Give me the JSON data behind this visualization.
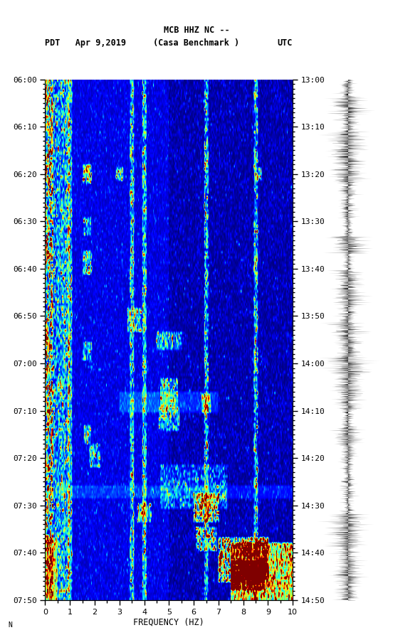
{
  "title_line1": "MCB HHZ NC --",
  "title_line2": "(Casa Benchmark )",
  "left_label": "PDT   Apr 9,2019",
  "right_label": "UTC",
  "freq_label": "FREQUENCY (HZ)",
  "freq_min": 0,
  "freq_max": 10,
  "left_times": [
    "06:00",
    "06:10",
    "06:20",
    "06:30",
    "06:40",
    "06:50",
    "07:00",
    "07:10",
    "07:20",
    "07:30",
    "07:40",
    "07:50"
  ],
  "right_times": [
    "13:00",
    "13:10",
    "13:20",
    "13:30",
    "13:40",
    "13:50",
    "14:00",
    "14:10",
    "14:20",
    "14:30",
    "14:40",
    "14:50"
  ],
  "n_freq_bins": 300,
  "n_time_bins": 200,
  "colormap": "jet",
  "bg_color": "white",
  "seed": 7,
  "vertical_line_freqs": [
    1.0,
    3.5,
    4.0,
    6.5,
    8.5
  ],
  "fig_width": 5.52,
  "fig_height": 8.93,
  "dpi": 100
}
